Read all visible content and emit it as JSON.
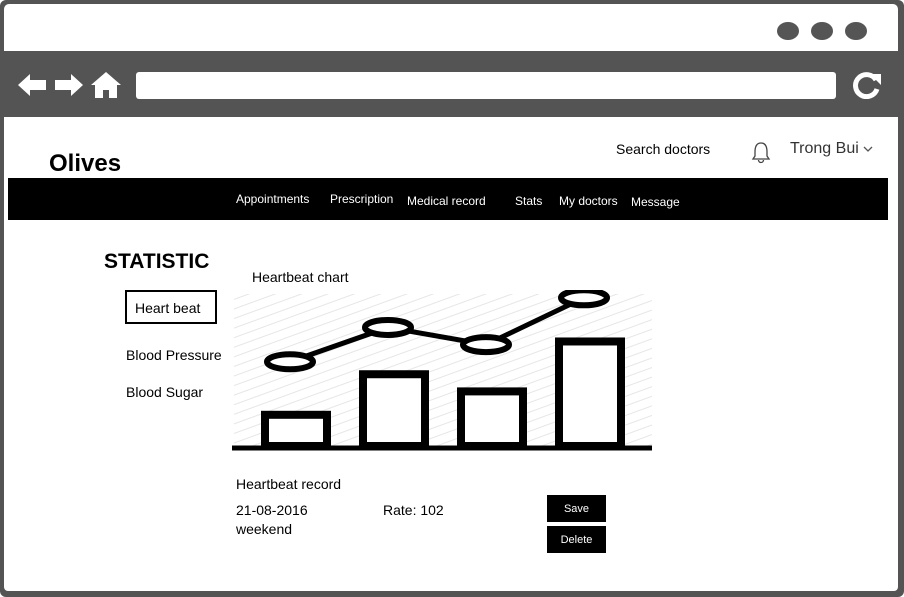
{
  "header": {
    "brand": "Olives",
    "search_link": "Search doctors",
    "user_name": "Trong Bui"
  },
  "nav": {
    "items": [
      "Appointments",
      "Prescription",
      "Medical record",
      "Stats",
      "My doctors",
      "Message"
    ]
  },
  "statistic": {
    "title": "STATISTIC",
    "menu": [
      "Heart beat",
      "Blood Pressure",
      "Blood Sugar"
    ],
    "active": "Heart beat"
  },
  "chart_data": {
    "type": "bar",
    "title": "Heartbeat chart",
    "xlabel": "",
    "ylabel": "",
    "categories": [
      "",
      "",
      "",
      ""
    ],
    "values": [
      2,
      4.6,
      3.5,
      6.7
    ],
    "line_values": [
      5.4,
      7.6,
      6.5,
      9.5
    ],
    "ylim": [
      0,
      10
    ],
    "grid": false,
    "colors": {
      "bars": "#000000",
      "line": "#000000",
      "hatch": "#e6e6e6"
    }
  },
  "record": {
    "title": "Heartbeat record",
    "date": "21-08-2016",
    "day": "weekend",
    "rate": "Rate: 102",
    "save_label": "Save",
    "delete_label": "Delete"
  }
}
